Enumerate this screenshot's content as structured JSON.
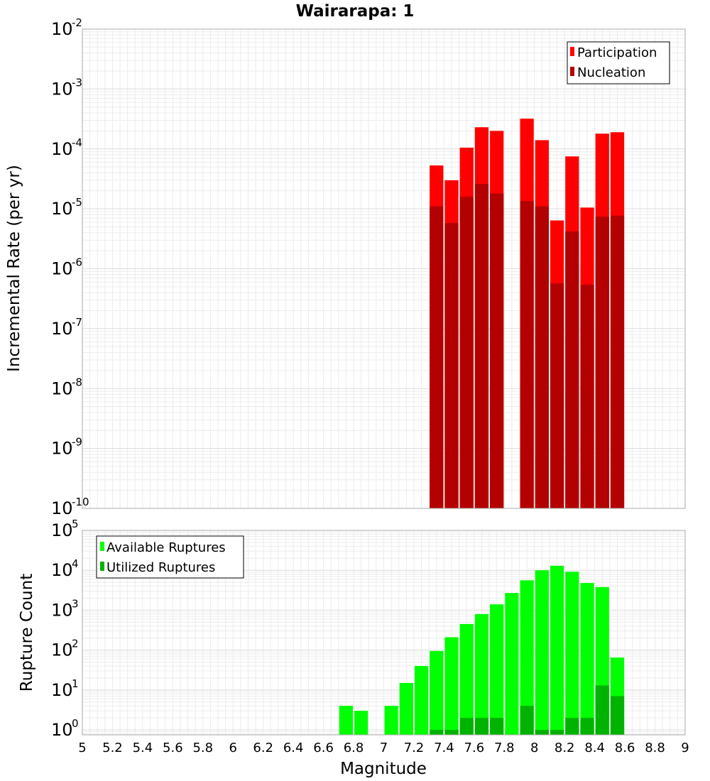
{
  "chart_data": {
    "type": "bar",
    "title": "Wairarapa: 1",
    "xlabel": "Magnitude",
    "xlim": [
      5,
      9
    ],
    "x_ticks": [
      "5",
      "5.2",
      "5.4",
      "5.6",
      "5.8",
      "6",
      "6.2",
      "6.4",
      "6.6",
      "6.8",
      "7",
      "7.2",
      "7.4",
      "7.6",
      "7.8",
      "8",
      "8.2",
      "8.4",
      "8.6",
      "8.8",
      "9"
    ],
    "grid": true,
    "panels": [
      {
        "id": "rate",
        "ylabel": "Incremental Rate (per yr)",
        "y_scale": "log",
        "ylim": [
          1e-10,
          0.01
        ],
        "y_tick_exponents": [
          "-10",
          "-9",
          "-8",
          "-7",
          "-6",
          "-5",
          "-4",
          "-3",
          "-2"
        ],
        "y_tick_base": "10",
        "legend_position": "top-right",
        "series": [
          {
            "name": "Participation",
            "color": "#ff0000",
            "x": [
              7.35,
              7.45,
              7.55,
              7.65,
              7.75,
              7.95,
              8.05,
              8.15,
              8.25,
              8.35,
              8.45,
              8.55
            ],
            "values": [
              5.3e-05,
              3e-05,
              0.000105,
              0.00023,
              0.0002,
              0.00032,
              0.00014,
              6.4e-06,
              7.5e-05,
              1.05e-05,
              0.00018,
              0.00019
            ]
          },
          {
            "name": "Nucleation",
            "color": "#b30000",
            "x": [
              7.35,
              7.45,
              7.55,
              7.65,
              7.75,
              7.95,
              8.05,
              8.15,
              8.25,
              8.35,
              8.45,
              8.55
            ],
            "values": [
              1.1e-05,
              5.8e-06,
              1.6e-05,
              2.6e-05,
              1.8e-05,
              1.35e-05,
              1.1e-05,
              5.7e-07,
              4.2e-06,
              5.4e-07,
              7.4e-06,
              7.7e-06
            ]
          }
        ]
      },
      {
        "id": "count",
        "ylabel": "Rupture Count",
        "y_scale": "log",
        "ylim": [
          0.75,
          100000.0
        ],
        "y_tick_exponents": [
          "0",
          "1",
          "2",
          "3",
          "4",
          "5"
        ],
        "y_tick_base": "10",
        "legend_position": "top-left",
        "series": [
          {
            "name": "Available Ruptures",
            "color": "#00ff00",
            "x": [
              6.75,
              6.85,
              7.05,
              7.15,
              7.25,
              7.35,
              7.45,
              7.55,
              7.65,
              7.75,
              7.85,
              7.95,
              8.05,
              8.15,
              8.25,
              8.35,
              8.45,
              8.55
            ],
            "values": [
              4,
              3,
              4,
              15,
              40,
              95,
              210,
              450,
              800,
              1400,
              2700,
              5600,
              10000,
              13000,
              9200,
              4800,
              3800,
              65
            ]
          },
          {
            "name": "Utilized Ruptures",
            "color": "#00b300",
            "x": [
              7.35,
              7.45,
              7.55,
              7.65,
              7.75,
              7.95,
              8.05,
              8.15,
              8.25,
              8.35,
              8.45,
              8.55
            ],
            "values": [
              1,
              1,
              2,
              2,
              2,
              4,
              1,
              1,
              2,
              2,
              13,
              7
            ]
          }
        ]
      }
    ]
  }
}
